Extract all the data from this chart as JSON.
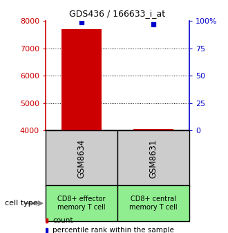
{
  "title": "GDS436 / 166633_i_at",
  "samples": [
    "GSM8634",
    "GSM8631"
  ],
  "cell_types": [
    "CD8+ effector\nmemory T cell",
    "CD8+ central\nmemory T cell"
  ],
  "cell_type_colors": [
    "#90EE90",
    "#90EE90"
  ],
  "counts": [
    7700,
    4050
  ],
  "percentile_ranks": [
    99,
    97
  ],
  "ylim": [
    4000,
    8000
  ],
  "yticks_left": [
    4000,
    5000,
    6000,
    7000,
    8000
  ],
  "yticks_right": [
    0,
    25,
    50,
    75,
    100
  ],
  "left_axis_color": "#cc0000",
  "right_axis_color": "#0000cc",
  "bar_color": "#cc0000",
  "dot_color": "#0000cc",
  "sample_box_color": "#cccccc",
  "grid_color": "#000000",
  "legend_count_color": "#cc0000",
  "legend_percentile_color": "#0000cc",
  "x_positions": [
    1,
    2
  ],
  "bar_width": 0.55,
  "figsize": [
    3.3,
    3.36
  ],
  "dpi": 100
}
